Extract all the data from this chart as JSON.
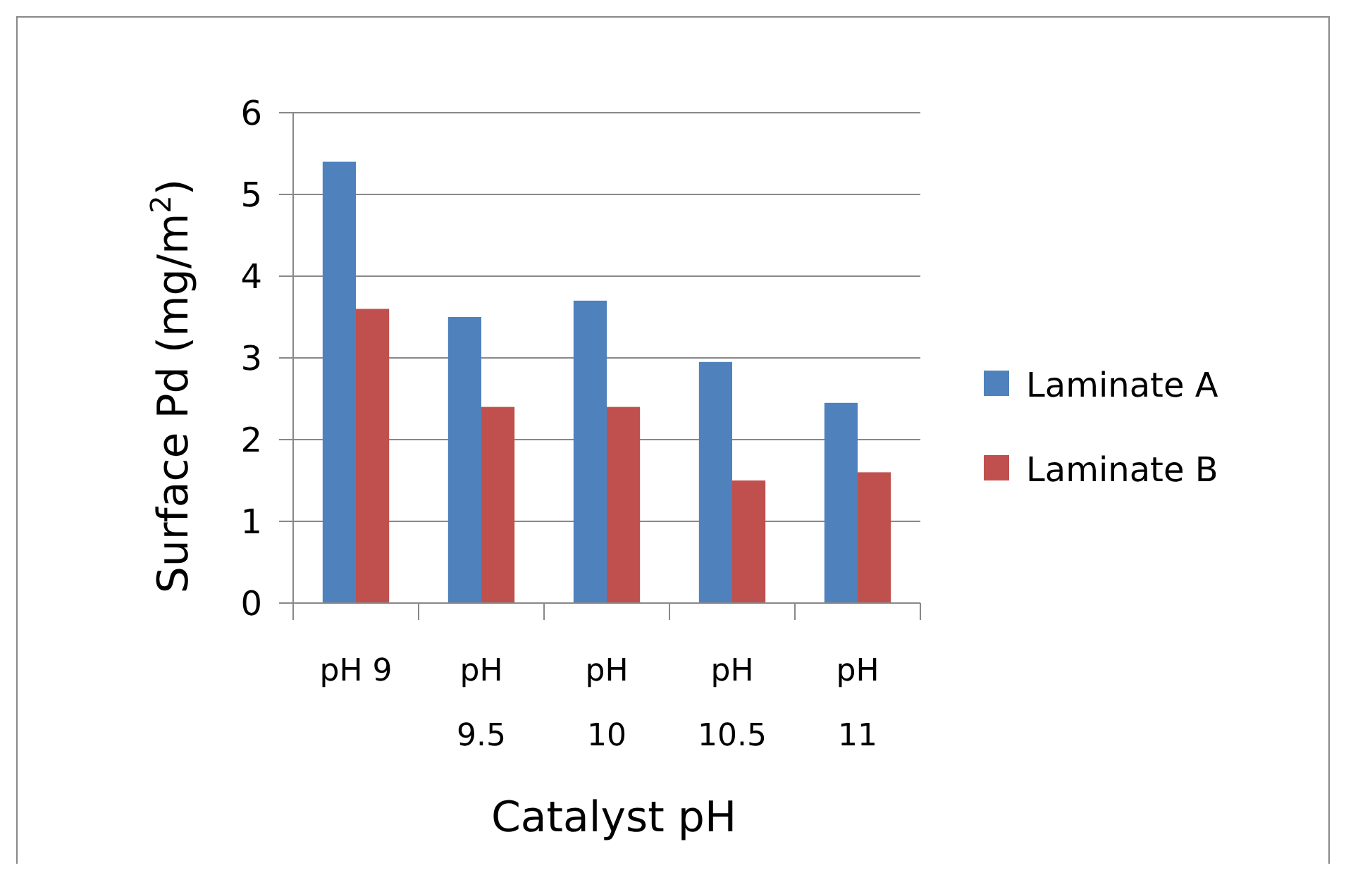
{
  "chart_data": {
    "type": "bar",
    "xlabel": "Catalyst pH",
    "ylabel": "Surface Pd (mg/m$^{2}$)",
    "categories": [
      "pH 9",
      "pH 9.5",
      "pH 10",
      "pH 10.5",
      "pH 11"
    ],
    "series": [
      {
        "name": "Laminate A",
        "color": "#4f81bd",
        "values": [
          5.4,
          3.5,
          3.7,
          2.95,
          2.45
        ]
      },
      {
        "name": "Laminate B",
        "color": "#c0504d",
        "values": [
          3.6,
          2.4,
          2.4,
          1.5,
          1.6
        ]
      }
    ],
    "ylim": [
      0,
      6
    ],
    "yticks": [
      0,
      1,
      2,
      3,
      4,
      5,
      6
    ],
    "grid": "y",
    "legend": "right"
  }
}
